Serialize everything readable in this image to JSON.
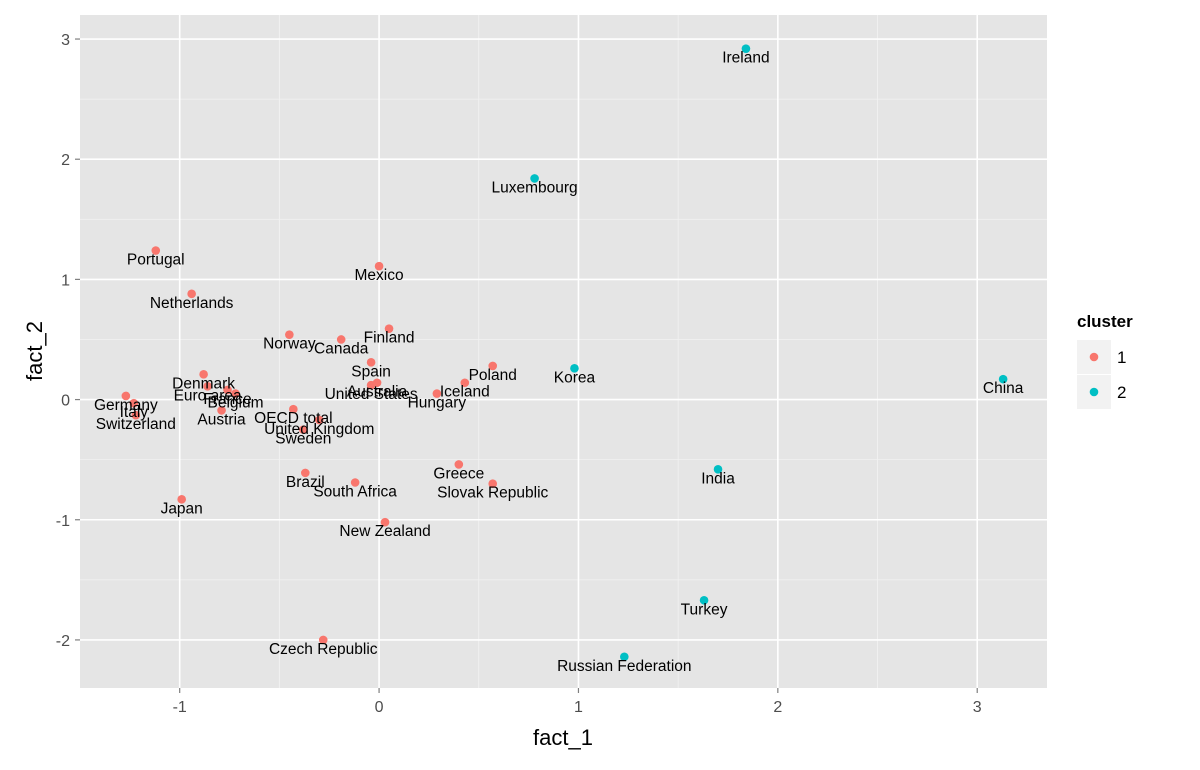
{
  "chart_data": {
    "type": "scatter",
    "xlabel": "fact_1",
    "ylabel": "fact_2",
    "xlim": [
      -1.5,
      3.35
    ],
    "ylim": [
      -2.4,
      3.2
    ],
    "x_ticks": [
      -1,
      0,
      1,
      2,
      3
    ],
    "y_ticks": [
      -2,
      -1,
      0,
      1,
      2,
      3
    ],
    "x_tick_labels": [
      "-1",
      "0",
      "1",
      "2",
      "3"
    ],
    "y_tick_labels": [
      "-2",
      "-1",
      "0",
      "1",
      "2",
      "3"
    ],
    "grid": true,
    "panel_background": "#e5e5e5",
    "grid_color": "#ffffff",
    "legend": {
      "title": "cluster",
      "placement": "right",
      "entries": [
        {
          "label": "1",
          "color": "#f8766d"
        },
        {
          "label": "2",
          "color": "#00bfc4"
        }
      ]
    },
    "points": [
      {
        "label": "Ireland",
        "x": 1.84,
        "y": 2.92,
        "cluster": "2"
      },
      {
        "label": "Luxembourg",
        "x": 0.78,
        "y": 1.84,
        "cluster": "2"
      },
      {
        "label": "Korea",
        "x": 0.98,
        "y": 0.26,
        "cluster": "2"
      },
      {
        "label": "China",
        "x": 3.13,
        "y": 0.17,
        "cluster": "2"
      },
      {
        "label": "India",
        "x": 1.7,
        "y": -0.58,
        "cluster": "2"
      },
      {
        "label": "Turkey",
        "x": 1.63,
        "y": -1.67,
        "cluster": "2"
      },
      {
        "label": "Russian Federation",
        "x": 1.23,
        "y": -2.14,
        "cluster": "2"
      },
      {
        "label": "Portugal",
        "x": -1.12,
        "y": 1.24,
        "cluster": "1"
      },
      {
        "label": "Netherlands",
        "x": -0.94,
        "y": 0.88,
        "cluster": "1"
      },
      {
        "label": "Mexico",
        "x": 0.0,
        "y": 1.11,
        "cluster": "1"
      },
      {
        "label": "Norway",
        "x": -0.45,
        "y": 0.54,
        "cluster": "1"
      },
      {
        "label": "Canada",
        "x": -0.19,
        "y": 0.5,
        "cluster": "1"
      },
      {
        "label": "Finland",
        "x": 0.05,
        "y": 0.59,
        "cluster": "1"
      },
      {
        "label": "Spain",
        "x": -0.04,
        "y": 0.31,
        "cluster": "1"
      },
      {
        "label": "Australia",
        "x": -0.01,
        "y": 0.14,
        "cluster": "1"
      },
      {
        "label": "United States",
        "x": -0.04,
        "y": 0.12,
        "cluster": "1"
      },
      {
        "label": "Poland",
        "x": 0.57,
        "y": 0.28,
        "cluster": "1"
      },
      {
        "label": "Iceland",
        "x": 0.43,
        "y": 0.14,
        "cluster": "1"
      },
      {
        "label": "Hungary",
        "x": 0.29,
        "y": 0.05,
        "cluster": "1"
      },
      {
        "label": "Denmark",
        "x": -0.88,
        "y": 0.21,
        "cluster": "1"
      },
      {
        "label": "Euro area",
        "x": -0.86,
        "y": 0.11,
        "cluster": "1"
      },
      {
        "label": "France",
        "x": -0.76,
        "y": 0.08,
        "cluster": "1"
      },
      {
        "label": "Belgium",
        "x": -0.72,
        "y": 0.05,
        "cluster": "1"
      },
      {
        "label": "Germany",
        "x": -1.27,
        "y": 0.03,
        "cluster": "1"
      },
      {
        "label": "Italy",
        "x": -1.23,
        "y": -0.03,
        "cluster": "1"
      },
      {
        "label": "Switzerland",
        "x": -1.22,
        "y": -0.13,
        "cluster": "1"
      },
      {
        "label": "Austria",
        "x": -0.79,
        "y": -0.09,
        "cluster": "1"
      },
      {
        "label": "OECD total",
        "x": -0.43,
        "y": -0.08,
        "cluster": "1"
      },
      {
        "label": "United Kingdom",
        "x": -0.3,
        "y": -0.17,
        "cluster": "1"
      },
      {
        "label": "Sweden",
        "x": -0.38,
        "y": -0.25,
        "cluster": "1"
      },
      {
        "label": "Greece",
        "x": 0.4,
        "y": -0.54,
        "cluster": "1"
      },
      {
        "label": "Slovak Republic",
        "x": 0.57,
        "y": -0.7,
        "cluster": "1"
      },
      {
        "label": "Brazil",
        "x": -0.37,
        "y": -0.61,
        "cluster": "1"
      },
      {
        "label": "South Africa",
        "x": -0.12,
        "y": -0.69,
        "cluster": "1"
      },
      {
        "label": "Japan",
        "x": -0.99,
        "y": -0.83,
        "cluster": "1"
      },
      {
        "label": "New Zealand",
        "x": 0.03,
        "y": -1.02,
        "cluster": "1"
      },
      {
        "label": "Czech Republic",
        "x": -0.28,
        "y": -2.0,
        "cluster": "1"
      }
    ]
  }
}
